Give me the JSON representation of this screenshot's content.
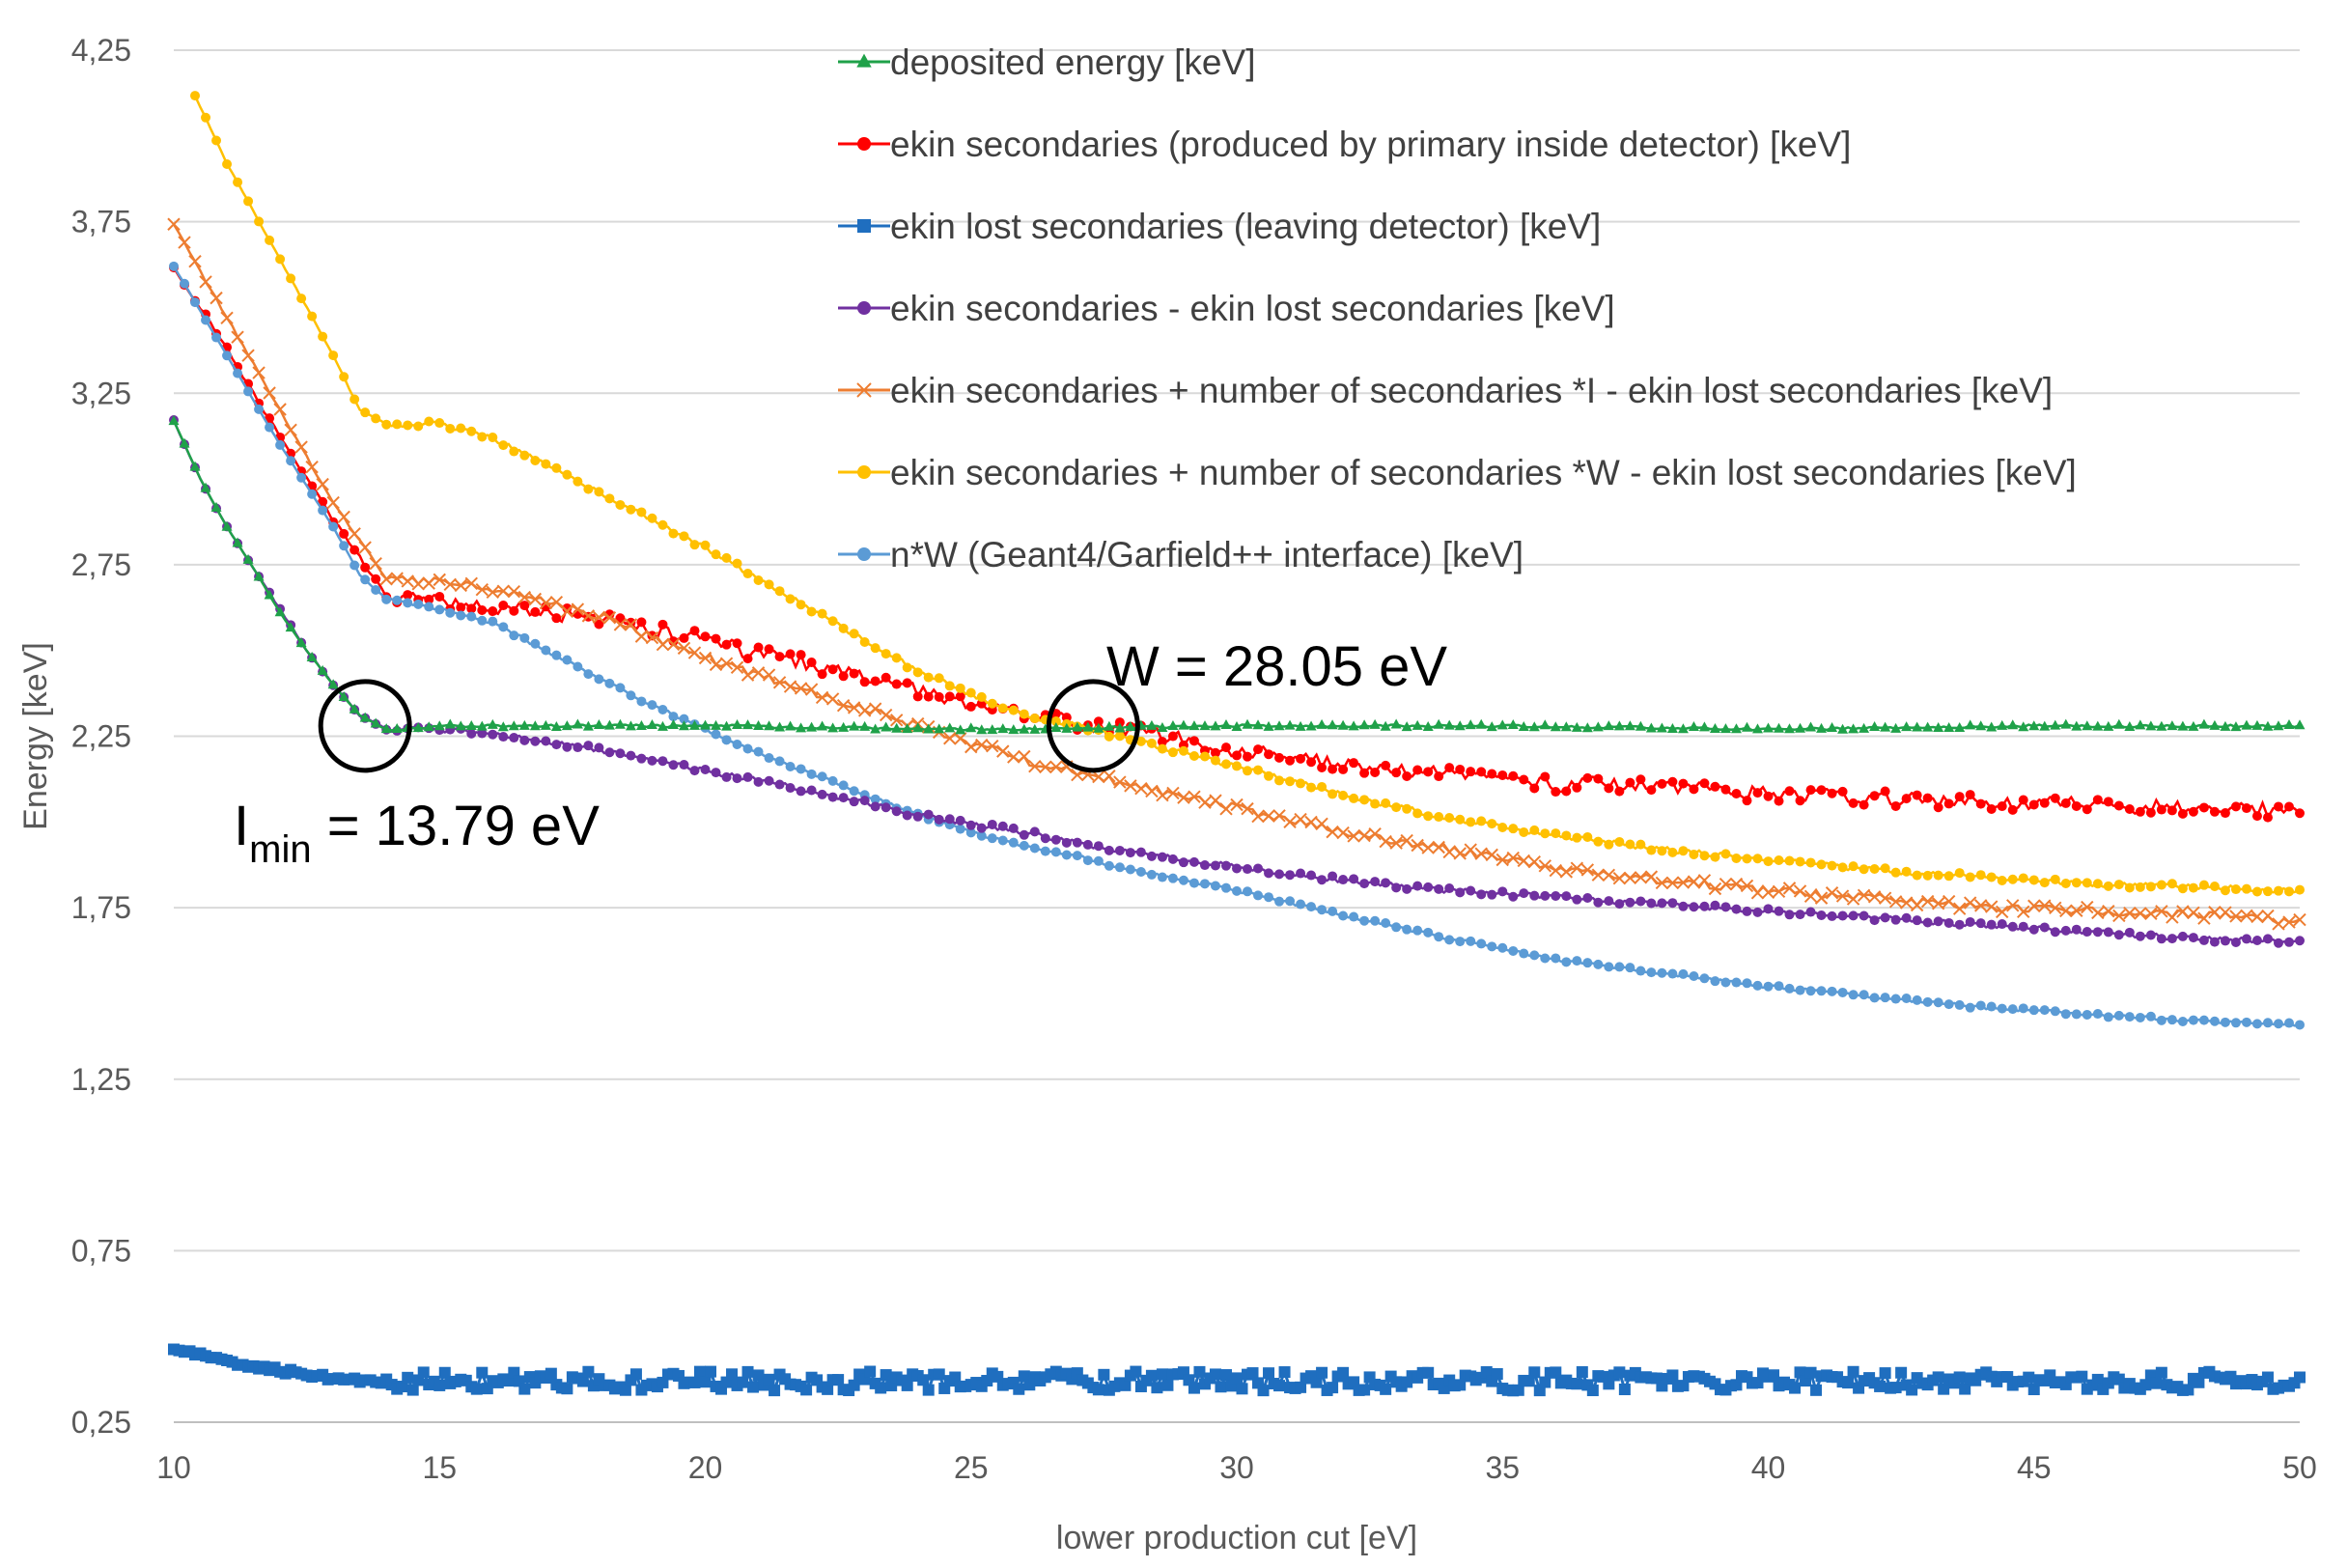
{
  "chart_data": {
    "type": "line",
    "xlabel": "lower production cut [eV]",
    "ylabel": "Energy [keV]",
    "xlim": [
      10,
      50
    ],
    "ylim": [
      0.25,
      4.25
    ],
    "xticks": [
      "10",
      "15",
      "20",
      "25",
      "30",
      "35",
      "40",
      "45",
      "50"
    ],
    "yticks": [
      "0,25",
      "0,75",
      "1,25",
      "1,75",
      "2,25",
      "2,75",
      "3,25",
      "3,75",
      "4,25"
    ],
    "grid": "horizontal",
    "legend_position": "top-right",
    "series": [
      {
        "name": "deposited energy [keV]",
        "color": "#1fa149",
        "marker": "triangle",
        "x": [
          10,
          10.5,
          11,
          11.5,
          12,
          12.5,
          13,
          13.5,
          14,
          14.5,
          15,
          20,
          25,
          30,
          35,
          40,
          45,
          50
        ],
        "y": [
          3.17,
          3.0,
          2.86,
          2.74,
          2.61,
          2.5,
          2.4,
          2.31,
          2.27,
          2.27,
          2.28,
          2.28,
          2.27,
          2.28,
          2.28,
          2.27,
          2.28,
          2.28
        ]
      },
      {
        "name": "ekin secondaries (produced by primary inside detector) [keV]",
        "color": "#ff0000",
        "marker": "circle",
        "x": [
          10,
          11,
          12,
          13,
          14,
          15,
          16,
          17,
          18,
          19,
          20,
          21,
          22,
          23,
          24,
          25,
          26,
          27,
          28,
          29,
          30,
          31,
          32,
          33,
          34,
          35,
          36,
          37,
          38,
          39,
          40,
          42,
          44,
          46,
          48,
          50
        ],
        "y": [
          3.62,
          3.38,
          3.12,
          2.88,
          2.66,
          2.64,
          2.63,
          2.61,
          2.59,
          2.56,
          2.53,
          2.49,
          2.46,
          2.42,
          2.38,
          2.34,
          2.31,
          2.29,
          2.27,
          2.24,
          2.21,
          2.19,
          2.17,
          2.15,
          2.14,
          2.12,
          2.11,
          2.11,
          2.1,
          2.09,
          2.08,
          2.07,
          2.06,
          2.05,
          2.04,
          2.03
        ]
      },
      {
        "name": "ekin lost secondaries (leaving detector) [keV]",
        "color": "#1f6ebf",
        "marker": "square",
        "x": [
          10,
          10.5,
          11,
          12,
          13,
          14,
          15,
          20,
          25,
          30,
          35,
          40,
          45,
          50
        ],
        "y": [
          0.46,
          0.45,
          0.43,
          0.4,
          0.38,
          0.37,
          0.37,
          0.37,
          0.37,
          0.37,
          0.37,
          0.37,
          0.37,
          0.37
        ]
      },
      {
        "name": "ekin secondaries - ekin lost secondaries [keV]",
        "color": "#7030a0",
        "marker": "circle",
        "x": [
          10,
          10.5,
          11,
          11.5,
          12,
          12.5,
          13,
          13.5,
          14,
          15,
          16,
          18,
          20,
          22,
          24,
          26,
          28,
          30,
          32,
          34,
          36,
          38,
          40,
          42,
          44,
          46,
          48,
          50
        ],
        "y": [
          3.17,
          3.0,
          2.86,
          2.74,
          2.62,
          2.5,
          2.4,
          2.31,
          2.27,
          2.27,
          2.26,
          2.21,
          2.15,
          2.09,
          2.02,
          1.97,
          1.91,
          1.87,
          1.83,
          1.8,
          1.78,
          1.76,
          1.74,
          1.72,
          1.7,
          1.68,
          1.66,
          1.65
        ]
      },
      {
        "name": "ekin secondaries + number of secondaries *I  - ekin lost secondaries [keV]",
        "color": "#ed7d31",
        "marker": "x",
        "x": [
          10,
          11,
          12,
          13,
          14,
          15,
          16,
          18,
          20,
          22,
          24,
          26,
          28,
          30,
          32,
          34,
          36,
          38,
          40,
          42,
          44,
          46,
          48,
          50
        ],
        "y": [
          3.74,
          3.47,
          3.2,
          2.93,
          2.71,
          2.7,
          2.68,
          2.6,
          2.48,
          2.38,
          2.28,
          2.18,
          2.11,
          2.04,
          1.97,
          1.92,
          1.87,
          1.83,
          1.8,
          1.78,
          1.75,
          1.74,
          1.73,
          1.71
        ]
      },
      {
        "name": "ekin secondaries + number of secondaries *W - ekin lost secondaries [keV]",
        "color": "#ffc000",
        "marker": "circle",
        "x": [
          10,
          11,
          12,
          13,
          13.5,
          14,
          15,
          16,
          17,
          18,
          19,
          20,
          21,
          22,
          23,
          24,
          25,
          26,
          27,
          28,
          30,
          32,
          34,
          36,
          38,
          40,
          42,
          44,
          46,
          48,
          50
        ],
        "y": [
          4.25,
          3.92,
          3.64,
          3.36,
          3.2,
          3.16,
          3.16,
          3.12,
          3.04,
          2.96,
          2.88,
          2.8,
          2.71,
          2.62,
          2.53,
          2.44,
          2.37,
          2.31,
          2.28,
          2.24,
          2.16,
          2.08,
          2.01,
          1.96,
          1.92,
          1.89,
          1.86,
          1.84,
          1.82,
          1.81,
          1.8
        ]
      },
      {
        "name": "n*W (Geant4/Garfield++ interface) [keV]",
        "color": "#5b9bd5",
        "marker": "circle",
        "x": [
          10,
          11,
          12,
          13,
          13.5,
          14,
          15,
          16,
          17,
          18,
          19,
          20,
          21,
          22,
          23,
          24,
          25,
          26,
          27,
          28,
          30,
          32,
          34,
          36,
          38,
          40,
          42,
          44,
          46,
          48,
          50
        ],
        "y": [
          3.62,
          3.36,
          3.1,
          2.86,
          2.72,
          2.65,
          2.62,
          2.58,
          2.5,
          2.42,
          2.34,
          2.27,
          2.2,
          2.14,
          2.08,
          2.02,
          1.97,
          1.93,
          1.9,
          1.86,
          1.8,
          1.73,
          1.66,
          1.6,
          1.56,
          1.52,
          1.49,
          1.46,
          1.44,
          1.42,
          1.41
        ]
      }
    ],
    "annotations": [
      {
        "base": "I",
        "sub": "min",
        "text": " = 13.79 eV",
        "x": 13.6,
        "y": 2.28
      },
      {
        "base": "W = 28.05 eV",
        "sub": "",
        "text": "",
        "x": 27.3,
        "y": 2.28
      }
    ]
  }
}
